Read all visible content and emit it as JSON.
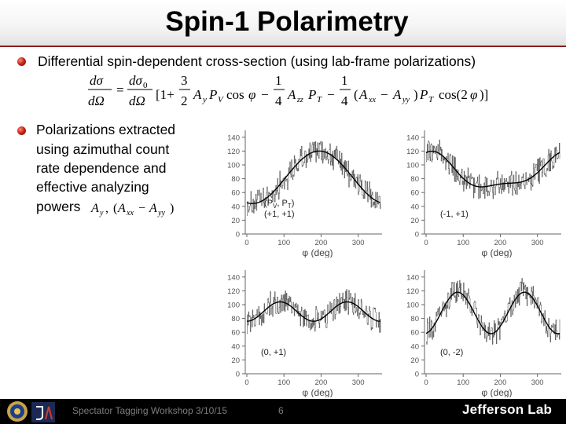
{
  "slide": {
    "title": "Spin-1 Polarimetry",
    "bullet1": "Differential spin-dependent cross-section (using lab-frame polarizations)",
    "bullet2_lines": [
      "Polarizations extracted",
      "using azimuthal count",
      "rate dependence and",
      "effective analyzing",
      "powers"
    ]
  },
  "plots": [
    {
      "label_line1": "(P",
      "label_sub1": "V",
      "label_mid": ", P",
      "label_sub2": "T",
      "label_end": ")",
      "label_line2": "(+1, +1)",
      "xlabel": "φ (deg)",
      "yticks": [
        "140",
        "120",
        "100",
        "80",
        "60",
        "40",
        "20",
        "0"
      ],
      "xticks": [
        "0",
        "100",
        "200",
        "300"
      ]
    },
    {
      "label": "(-1, +1)",
      "xlabel": "φ (deg)",
      "yticks": [
        "140",
        "120",
        "100",
        "80",
        "60",
        "40",
        "20",
        "0"
      ],
      "xticks": [
        "0",
        "100",
        "200",
        "300"
      ]
    },
    {
      "label": "(0, +1)",
      "xlabel": "φ (deg)",
      "yticks": [
        "140",
        "120",
        "100",
        "80",
        "60",
        "40",
        "20",
        "0"
      ],
      "xticks": [
        "0",
        "100",
        "200",
        "300"
      ]
    },
    {
      "label": "(0, -2)",
      "xlabel": "φ (deg)",
      "yticks": [
        "140",
        "120",
        "100",
        "80",
        "60",
        "40",
        "20",
        "0"
      ],
      "xticks": [
        "0",
        "100",
        "200",
        "300"
      ]
    }
  ],
  "footer": {
    "text": "Spectator Tagging Workshop 3/10/15",
    "page": "6",
    "logo_text": "Jefferson Lab",
    "colors": {
      "bar": "#000000",
      "accent": "#8a1a1a"
    }
  }
}
